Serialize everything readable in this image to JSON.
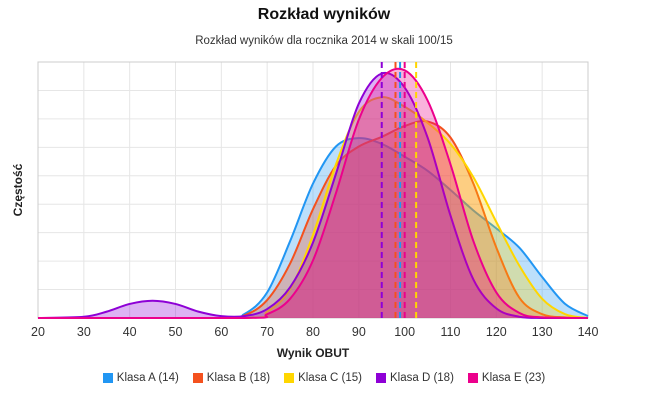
{
  "chart_data": {
    "type": "area",
    "title": "Rozkład wyników",
    "subtitle": "Rozkład wyników dla rocznika 2014 w skali 100/15",
    "xlabel": "Wynik OBUT",
    "ylabel": "Częstość",
    "xlim": [
      20,
      140
    ],
    "ylim": [
      0,
      0.04
    ],
    "x_ticks": [
      20,
      30,
      40,
      50,
      60,
      70,
      80,
      90,
      100,
      110,
      120,
      130,
      140
    ],
    "legend_position": "bottom",
    "series": [
      {
        "name": "Klasa A (14)",
        "color": "#2196f3",
        "x": [
          20,
          60,
          65,
          70,
          75,
          80,
          85,
          90,
          95,
          100,
          105,
          110,
          115,
          120,
          125,
          130,
          135,
          140
        ],
        "values": [
          0.0,
          0.0,
          0.0006,
          0.004,
          0.012,
          0.021,
          0.0268,
          0.0281,
          0.0272,
          0.0252,
          0.023,
          0.02,
          0.0168,
          0.014,
          0.011,
          0.0064,
          0.0022,
          0.0003
        ],
        "mean": 99
      },
      {
        "name": "Klasa B (18)",
        "color": "#f4511e",
        "x": [
          20,
          60,
          65,
          70,
          75,
          80,
          85,
          90,
          95,
          100,
          105,
          110,
          115,
          120,
          125,
          130,
          135,
          140
        ],
        "values": [
          0.0,
          0.0,
          0.0004,
          0.0028,
          0.0085,
          0.017,
          0.0238,
          0.0268,
          0.0283,
          0.03,
          0.0307,
          0.0282,
          0.021,
          0.011,
          0.0032,
          0.0006,
          0.0001,
          0.0
        ],
        "mean": 98
      },
      {
        "name": "Klasa C (15)",
        "color": "#ffd600",
        "x": [
          20,
          65,
          70,
          75,
          80,
          85,
          90,
          95,
          100,
          105,
          110,
          115,
          120,
          125,
          130,
          135,
          140
        ],
        "values": [
          0.0,
          0.0,
          0.001,
          0.0045,
          0.013,
          0.024,
          0.0322,
          0.0345,
          0.033,
          0.0305,
          0.0272,
          0.022,
          0.015,
          0.0082,
          0.003,
          0.0006,
          0.0
        ],
        "mean": 102.5
      },
      {
        "name": "Klasa D (18)",
        "color": "#8e00d6",
        "x": [
          20,
          30,
          35,
          40,
          45,
          50,
          55,
          60,
          65,
          70,
          75,
          80,
          85,
          90,
          95,
          100,
          105,
          110,
          115,
          120,
          125,
          130,
          140
        ],
        "values": [
          0.0,
          0.0002,
          0.001,
          0.0022,
          0.0027,
          0.0022,
          0.001,
          0.0003,
          0.0003,
          0.0014,
          0.0048,
          0.0118,
          0.0225,
          0.0335,
          0.0382,
          0.036,
          0.0282,
          0.016,
          0.006,
          0.0015,
          0.0002,
          0.0,
          0.0
        ],
        "mean": 95
      },
      {
        "name": "Klasa E (23)",
        "color": "#ec008c",
        "x": [
          20,
          65,
          70,
          75,
          80,
          85,
          90,
          95,
          100,
          105,
          110,
          115,
          120,
          125,
          130,
          140
        ],
        "values": [
          0.0,
          0.0,
          0.0006,
          0.003,
          0.009,
          0.0195,
          0.031,
          0.0375,
          0.0387,
          0.034,
          0.024,
          0.012,
          0.004,
          0.0008,
          0.0001,
          0.0
        ],
        "mean": 100
      }
    ]
  }
}
